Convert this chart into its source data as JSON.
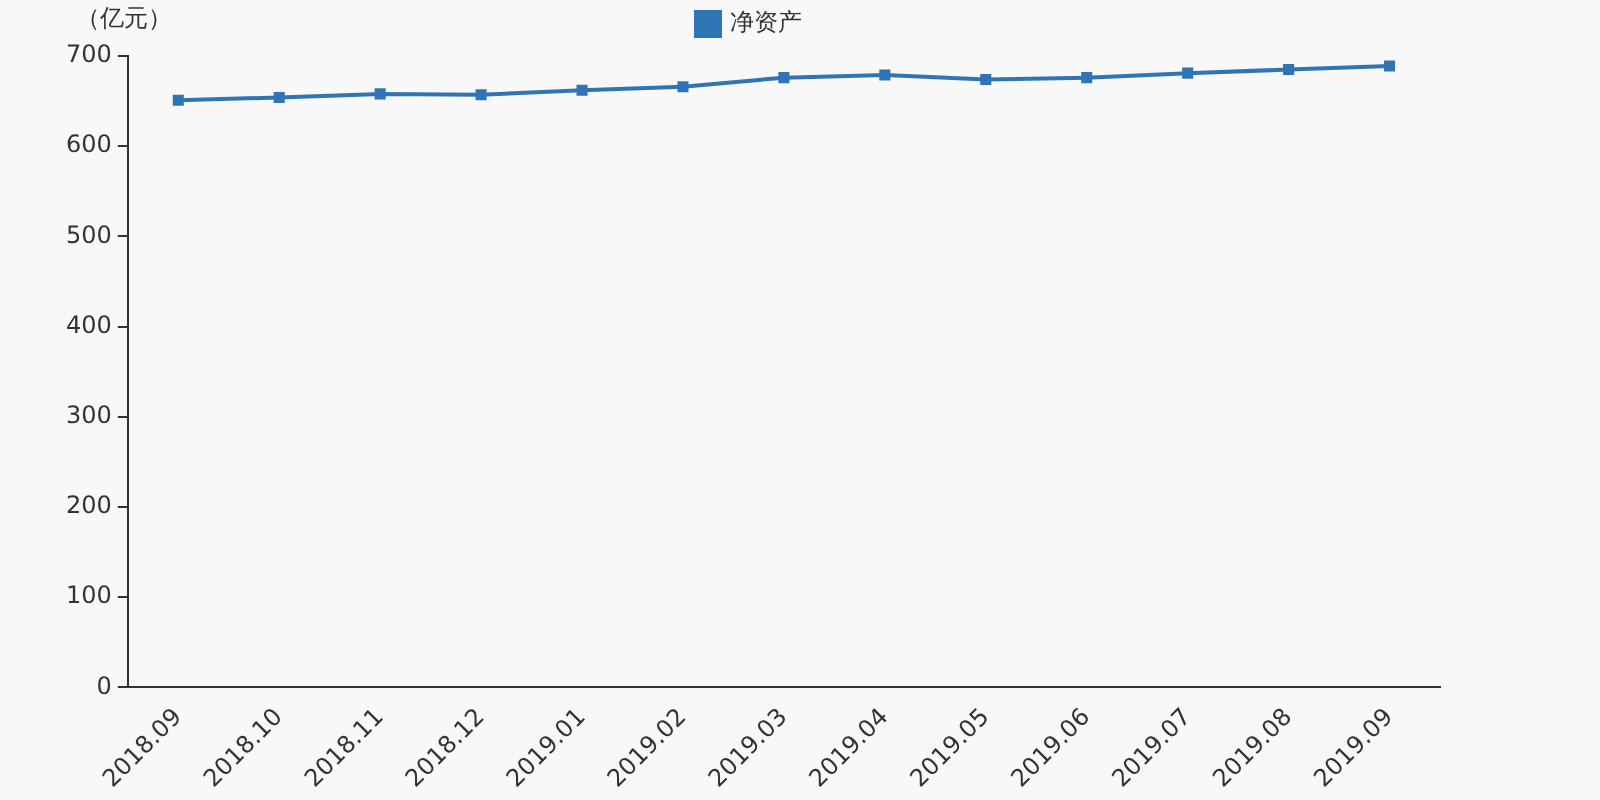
{
  "chart_data": {
    "type": "line",
    "ylabel": "（亿元）",
    "categories": [
      "2018.09",
      "2018.10",
      "2018.11",
      "2018.12",
      "2019.01",
      "2019.02",
      "2019.03",
      "2019.04",
      "2019.05",
      "2019.06",
      "2019.07",
      "2019.08",
      "2019.09"
    ],
    "series": [
      {
        "name": "净资产",
        "color": "#2f75b5",
        "values": [
          651,
          654,
          658,
          657,
          662,
          666,
          676,
          679,
          674,
          676,
          681,
          685,
          689
        ]
      }
    ],
    "ylim": [
      0,
      700
    ],
    "yticks": [
      0,
      100,
      200,
      300,
      400,
      500,
      600,
      700
    ],
    "grid": false,
    "legend": "top",
    "marker": "square",
    "line_style": "solid"
  }
}
